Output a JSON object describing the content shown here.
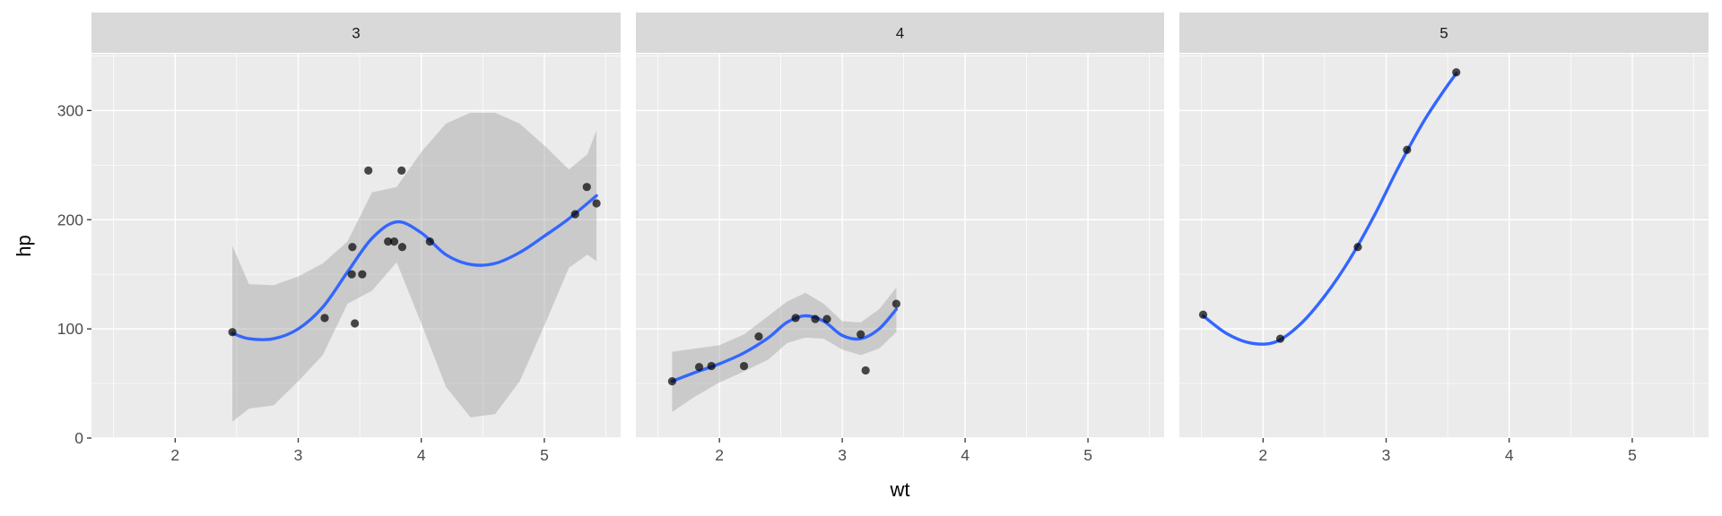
{
  "chart_data": {
    "type": "scatter",
    "facet_variable": "",
    "xlabel": "wt",
    "ylabel": "hp",
    "xlim": [
      1.32,
      5.62
    ],
    "ylim": [
      0,
      352
    ],
    "x_ticks": [
      2,
      3,
      4,
      5
    ],
    "y_ticks": [
      0,
      100,
      200,
      300
    ],
    "grid": true,
    "legend": "none",
    "colors": {
      "panel": "#ebebeb",
      "strip": "#d9d9d9",
      "smooth_line": "#3366ff",
      "ribbon": "#999999",
      "points": "#000000"
    },
    "facets": [
      {
        "label": "3",
        "points": [
          [
            2.465,
            97
          ],
          [
            3.215,
            110
          ],
          [
            3.44,
            175
          ],
          [
            3.46,
            105
          ],
          [
            3.52,
            150
          ],
          [
            3.435,
            150
          ],
          [
            3.57,
            245
          ],
          [
            3.73,
            180
          ],
          [
            3.78,
            180
          ],
          [
            3.84,
            245
          ],
          [
            3.845,
            175
          ],
          [
            4.07,
            180
          ],
          [
            5.25,
            205
          ],
          [
            5.345,
            230
          ],
          [
            5.424,
            215
          ]
        ],
        "smooth": [
          [
            2.465,
            96
          ],
          [
            2.6,
            91
          ],
          [
            2.8,
            91
          ],
          [
            3.0,
            100
          ],
          [
            3.2,
            120
          ],
          [
            3.4,
            152
          ],
          [
            3.6,
            183
          ],
          [
            3.8,
            198
          ],
          [
            4.0,
            188
          ],
          [
            4.2,
            168
          ],
          [
            4.4,
            159
          ],
          [
            4.6,
            160
          ],
          [
            4.8,
            170
          ],
          [
            5.0,
            185
          ],
          [
            5.2,
            201
          ],
          [
            5.424,
            222
          ]
        ],
        "band_upper": [
          [
            2.465,
            176
          ],
          [
            2.6,
            141
          ],
          [
            2.8,
            140
          ],
          [
            3.0,
            148
          ],
          [
            3.2,
            160
          ],
          [
            3.4,
            180
          ],
          [
            3.6,
            225
          ],
          [
            3.8,
            230
          ],
          [
            4.0,
            262
          ],
          [
            4.2,
            288
          ],
          [
            4.4,
            298
          ],
          [
            4.6,
            298
          ],
          [
            4.8,
            288
          ],
          [
            5.0,
            268
          ],
          [
            5.2,
            246
          ],
          [
            5.35,
            260
          ],
          [
            5.424,
            282
          ]
        ],
        "band_lower": [
          [
            2.465,
            15
          ],
          [
            2.6,
            27
          ],
          [
            2.8,
            30
          ],
          [
            3.0,
            52
          ],
          [
            3.2,
            76
          ],
          [
            3.4,
            123
          ],
          [
            3.6,
            135
          ],
          [
            3.8,
            161
          ],
          [
            4.0,
            105
          ],
          [
            4.2,
            47
          ],
          [
            4.4,
            19
          ],
          [
            4.6,
            22
          ],
          [
            4.8,
            52
          ],
          [
            5.0,
            103
          ],
          [
            5.2,
            156
          ],
          [
            5.35,
            168
          ],
          [
            5.424,
            162
          ]
        ]
      },
      {
        "label": "4",
        "points": [
          [
            1.615,
            52
          ],
          [
            1.835,
            65
          ],
          [
            1.935,
            66
          ],
          [
            2.2,
            66
          ],
          [
            2.32,
            93
          ],
          [
            2.62,
            110
          ],
          [
            2.78,
            109
          ],
          [
            2.875,
            109
          ],
          [
            3.15,
            95
          ],
          [
            3.19,
            62
          ],
          [
            3.44,
            123
          ]
        ],
        "smooth": [
          [
            1.615,
            52
          ],
          [
            1.8,
            60
          ],
          [
            2.0,
            68
          ],
          [
            2.2,
            78
          ],
          [
            2.4,
            92
          ],
          [
            2.55,
            106
          ],
          [
            2.7,
            112
          ],
          [
            2.85,
            107
          ],
          [
            3.0,
            94
          ],
          [
            3.15,
            91
          ],
          [
            3.3,
            100
          ],
          [
            3.44,
            118
          ]
        ],
        "band_upper": [
          [
            1.615,
            79
          ],
          [
            1.8,
            82
          ],
          [
            2.0,
            85
          ],
          [
            2.2,
            95
          ],
          [
            2.4,
            112
          ],
          [
            2.55,
            125
          ],
          [
            2.7,
            133
          ],
          [
            2.85,
            123
          ],
          [
            3.0,
            107
          ],
          [
            3.15,
            106
          ],
          [
            3.3,
            118
          ],
          [
            3.44,
            138
          ]
        ],
        "band_lower": [
          [
            1.615,
            24
          ],
          [
            1.8,
            38
          ],
          [
            2.0,
            51
          ],
          [
            2.2,
            61
          ],
          [
            2.4,
            72
          ],
          [
            2.55,
            87
          ],
          [
            2.7,
            92
          ],
          [
            2.85,
            91
          ],
          [
            3.0,
            81
          ],
          [
            3.15,
            76
          ],
          [
            3.3,
            82
          ],
          [
            3.44,
            97
          ]
        ]
      },
      {
        "label": "5",
        "points": [
          [
            1.513,
            113
          ],
          [
            2.14,
            91
          ],
          [
            2.77,
            175
          ],
          [
            3.17,
            264
          ],
          [
            3.57,
            335
          ]
        ],
        "smooth": [
          [
            1.513,
            112
          ],
          [
            1.7,
            96
          ],
          [
            1.9,
            87
          ],
          [
            2.1,
            88
          ],
          [
            2.3,
            104
          ],
          [
            2.5,
            130
          ],
          [
            2.7,
            163
          ],
          [
            2.9,
            203
          ],
          [
            3.1,
            248
          ],
          [
            3.3,
            289
          ],
          [
            3.45,
            315
          ],
          [
            3.57,
            334
          ]
        ]
      }
    ]
  }
}
